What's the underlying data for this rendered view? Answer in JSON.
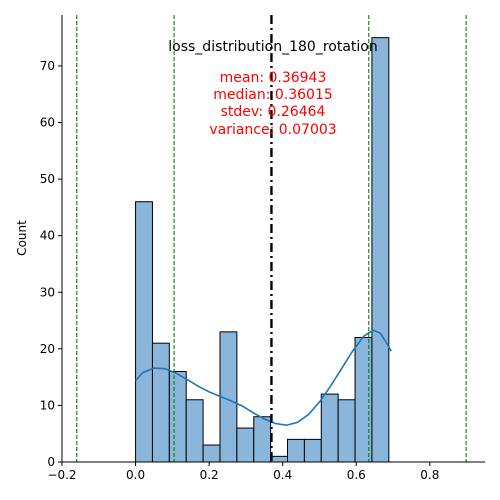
{
  "chart_data": {
    "type": "bar",
    "title": "loss_distribution_180_rotation",
    "xlabel": "",
    "ylabel": "Count",
    "xlim": [
      -0.2,
      0.95
    ],
    "ylim": [
      0,
      79
    ],
    "x_ticks": [
      -0.2,
      0.0,
      0.2,
      0.4,
      0.6,
      0.8
    ],
    "x_tick_labels": [
      "−0.2",
      "0.0",
      "0.2",
      "0.4",
      "0.6",
      "0.8"
    ],
    "y_ticks": [
      0,
      10,
      20,
      30,
      40,
      50,
      60,
      70
    ],
    "y_tick_labels": [
      "0",
      "10",
      "20",
      "30",
      "40",
      "50",
      "60",
      "70"
    ],
    "grid": false,
    "bins": {
      "start": 0.0,
      "width": 0.0459,
      "counts": [
        46,
        21,
        16,
        11,
        3,
        23,
        6,
        8,
        1,
        4,
        4,
        12,
        11,
        22,
        75
      ]
    },
    "bar_color": "#8ab6db",
    "bar_edge_color": "#000000",
    "kde": {
      "color": "#1f77b4",
      "points": [
        [
          0.0,
          14.4
        ],
        [
          0.02,
          15.8
        ],
        [
          0.05,
          16.6
        ],
        [
          0.08,
          16.5
        ],
        [
          0.11,
          15.7
        ],
        [
          0.14,
          14.6
        ],
        [
          0.17,
          13.4
        ],
        [
          0.2,
          12.4
        ],
        [
          0.23,
          11.6
        ],
        [
          0.26,
          10.8
        ],
        [
          0.29,
          9.9
        ],
        [
          0.32,
          8.7
        ],
        [
          0.35,
          7.6
        ],
        [
          0.38,
          6.8
        ],
        [
          0.41,
          6.5
        ],
        [
          0.44,
          7.0
        ],
        [
          0.47,
          8.4
        ],
        [
          0.5,
          10.6
        ],
        [
          0.53,
          13.4
        ],
        [
          0.56,
          16.5
        ],
        [
          0.59,
          19.6
        ],
        [
          0.62,
          22.2
        ],
        [
          0.645,
          23.3
        ],
        [
          0.665,
          22.8
        ],
        [
          0.68,
          21.3
        ],
        [
          0.695,
          19.6
        ]
      ]
    },
    "reference_lines": [
      {
        "kind": "mean",
        "x": 0.36943,
        "style": "dashdot",
        "color": "#000000"
      },
      {
        "kind": "stdev_band",
        "x": 0.10479,
        "style": "dashed",
        "color": "#008000"
      },
      {
        "kind": "stdev_band",
        "x": 0.63407,
        "style": "dashed",
        "color": "#008000"
      },
      {
        "kind": "stdev_band",
        "x": -0.15985,
        "style": "dashed",
        "color": "#008000"
      },
      {
        "kind": "stdev_band",
        "x": 0.89871,
        "style": "dashed",
        "color": "#008000"
      }
    ],
    "annotations": [
      "mean: 0.36943",
      "median: 0.36015",
      "stdev: 0.26464",
      "variance: 0.07003"
    ],
    "annotation_color": "#ff0000"
  }
}
